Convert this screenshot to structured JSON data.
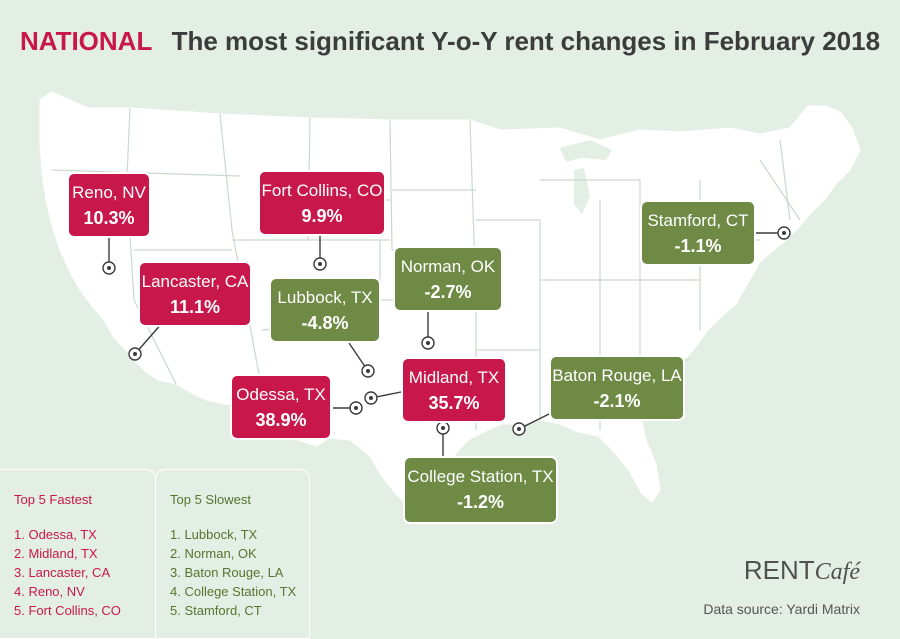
{
  "header": {
    "tag": "NATIONAL",
    "title": "The most significant Y-o-Y rent changes in February 2018"
  },
  "colors": {
    "fastest": "#c8174a",
    "slowest": "#6e8a45",
    "land": "#ffffff",
    "ocean": "#e3efe4",
    "borders": "#c9d9cc"
  },
  "markers": [
    {
      "city": "Reno, NV",
      "change": "10.3%",
      "group": "fastest"
    },
    {
      "city": "Fort Collins, CO",
      "change": "9.9%",
      "group": "fastest"
    },
    {
      "city": "Lancaster, CA",
      "change": "11.1%",
      "group": "fastest"
    },
    {
      "city": "Lubbock, TX",
      "change": "-4.8%",
      "group": "slowest"
    },
    {
      "city": "Norman, OK",
      "change": "-2.7%",
      "group": "slowest"
    },
    {
      "city": "Stamford, CT",
      "change": "-1.1%",
      "group": "slowest"
    },
    {
      "city": "Odessa, TX",
      "change": "38.9%",
      "group": "fastest"
    },
    {
      "city": "Midland, TX",
      "change": "35.7%",
      "group": "fastest"
    },
    {
      "city": "Baton Rouge, LA",
      "change": "-2.1%",
      "group": "slowest"
    },
    {
      "city": "College Station, TX",
      "change": "-1.2%",
      "group": "slowest"
    }
  ],
  "legend": {
    "fastest": {
      "title": "Top 5 Fastest",
      "items": [
        "1. Odessa, TX",
        "2. Midland, TX",
        "3.  Lancaster, CA",
        "4. Reno, NV",
        "5. Fort Collins, CO"
      ]
    },
    "slowest": {
      "title": "Top 5 Slowest",
      "items": [
        "1. Lubbock, TX",
        "2. Norman, OK",
        "3. Baton Rouge, LA",
        "4. College Station, TX",
        "5. Stamford, CT"
      ]
    }
  },
  "brand": {
    "part1": "RENT",
    "part2": "Café"
  },
  "source": "Data source:  Yardi Matrix"
}
